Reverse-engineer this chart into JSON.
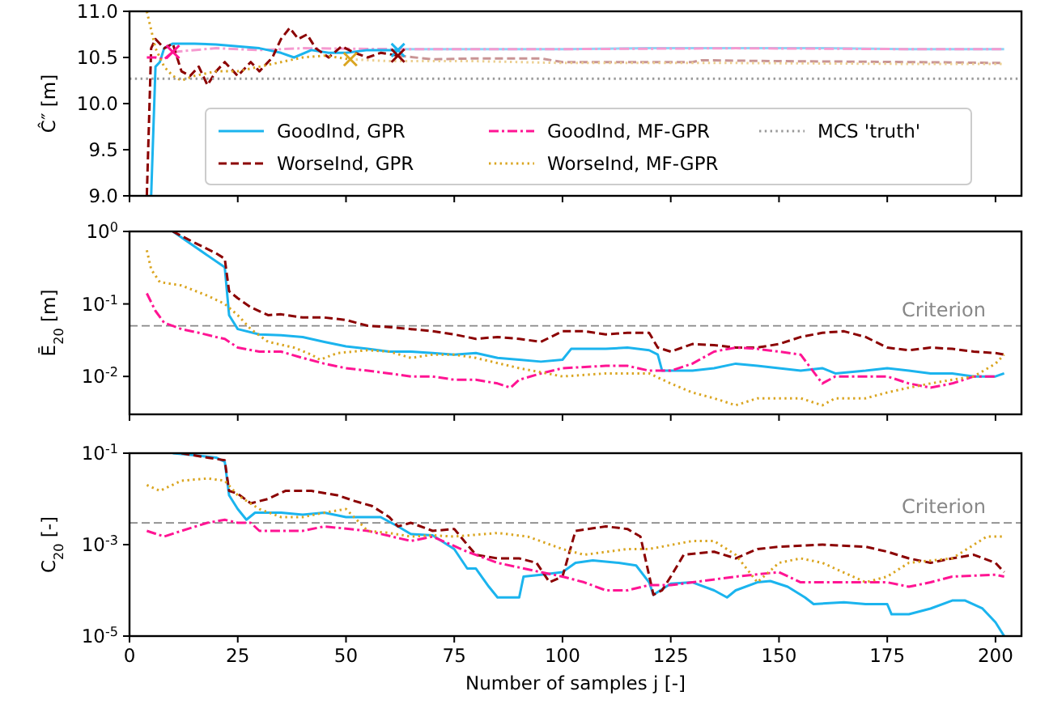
{
  "chart_data": [
    {
      "type": "line",
      "ylabel": "Ĉ″ [m]",
      "xlim": [
        0,
        206
      ],
      "xticks": [
        0,
        25,
        50,
        75,
        100,
        125,
        150,
        175,
        200
      ],
      "ylim": [
        9,
        11
      ],
      "yticks": [
        {
          "value": 9,
          "label": "9.0"
        },
        {
          "value": 9.5,
          "label": "9.5"
        },
        {
          "value": 10,
          "label": "10.0"
        },
        {
          "value": 10.5,
          "label": "10.5"
        },
        {
          "value": 11,
          "label": "11.0"
        }
      ],
      "tick_labels": "y",
      "legend": "bottom",
      "grid": false,
      "series": [
        {
          "type": "line",
          "color": "#8fd5f5",
          "line_style": "solid",
          "x": [
            62,
            80,
            100,
            120,
            140,
            160,
            180,
            202
          ],
          "values": [
            10.59,
            10.59,
            10.59,
            10.6,
            10.6,
            10.6,
            10.59,
            10.59
          ]
        },
        {
          "type": "line",
          "color": "#f59ad0",
          "line_style": "dashdot",
          "x": [
            10,
            20,
            30,
            40,
            62,
            80,
            100,
            140,
            180,
            202
          ],
          "values": [
            10.56,
            10.6,
            10.58,
            10.6,
            10.59,
            10.59,
            10.59,
            10.6,
            10.59,
            10.59
          ]
        },
        {
          "type": "line",
          "color": "#c99595",
          "line_style": "dashed",
          "x": [
            62,
            70,
            80,
            95,
            100,
            130,
            132,
            150,
            180,
            202
          ],
          "values": [
            10.52,
            10.48,
            10.49,
            10.49,
            10.45,
            10.45,
            10.47,
            10.46,
            10.45,
            10.44
          ]
        },
        {
          "type": "line",
          "color": "#eccf90",
          "line_style": "dotted",
          "x": [
            51,
            60,
            80,
            100,
            140,
            180,
            202
          ],
          "values": [
            10.48,
            10.46,
            10.46,
            10.44,
            10.44,
            10.43,
            10.43
          ]
        },
        {
          "type": "line",
          "name": "GoodInd, GPR",
          "color": "#1bb4ee",
          "line_style": "solid",
          "x": [
            5,
            6,
            7,
            8,
            10,
            15,
            20,
            25,
            30,
            35,
            38,
            42,
            46,
            50,
            55,
            60,
            62
          ],
          "values": [
            9.0,
            10.4,
            10.45,
            10.6,
            10.65,
            10.65,
            10.64,
            10.62,
            10.6,
            10.55,
            10.5,
            10.58,
            10.55,
            10.55,
            10.58,
            10.58,
            10.58
          ]
        },
        {
          "type": "line",
          "name": "WorseInd, GPR",
          "color": "#8b0000",
          "line_style": "dashed",
          "x": [
            4,
            5,
            6,
            8,
            10,
            12,
            14,
            16,
            18,
            20,
            22,
            25,
            28,
            30,
            33,
            35,
            37,
            39,
            41,
            43,
            46,
            49,
            52,
            55,
            58,
            62
          ],
          "values": [
            9.0,
            10.6,
            10.7,
            10.6,
            10.65,
            10.35,
            10.3,
            10.4,
            10.2,
            10.35,
            10.45,
            10.3,
            10.45,
            10.35,
            10.5,
            10.7,
            10.82,
            10.7,
            10.75,
            10.6,
            10.5,
            10.62,
            10.55,
            10.5,
            10.55,
            10.52
          ]
        },
        {
          "type": "line",
          "name": "GoodInd, MF-GPR",
          "color": "#ff1493",
          "line_style": "dashdot",
          "x": [
            4,
            6,
            8,
            10
          ],
          "values": [
            10.5,
            10.5,
            10.48,
            10.56
          ]
        },
        {
          "type": "line",
          "name": "WorseInd, MF-GPR",
          "color": "#daa520",
          "line_style": "dotted",
          "x": [
            4,
            5,
            6,
            8,
            10,
            12,
            15,
            20,
            25,
            30,
            35,
            40,
            45,
            51
          ],
          "values": [
            11.0,
            10.8,
            10.6,
            10.4,
            10.3,
            10.25,
            10.3,
            10.35,
            10.35,
            10.4,
            10.45,
            10.5,
            10.52,
            10.48
          ]
        },
        {
          "type": "line",
          "name": "MCS 'truth'",
          "color": "#999999",
          "line_style": "dotted",
          "x": [
            0,
            206
          ],
          "values": [
            10.27,
            10.27
          ]
        },
        {
          "type": "scatter",
          "marker": "cross",
          "color": "#1bb4ee",
          "x": [
            62
          ],
          "values": [
            10.58
          ]
        },
        {
          "type": "scatter",
          "marker": "cross",
          "color": "#8b0000",
          "x": [
            62
          ],
          "values": [
            10.52
          ]
        },
        {
          "type": "scatter",
          "marker": "cross",
          "color": "#ff1493",
          "x": [
            10
          ],
          "values": [
            10.56
          ]
        },
        {
          "type": "scatter",
          "marker": "cross",
          "color": "#daa520",
          "x": [
            51
          ],
          "values": [
            10.48
          ]
        }
      ]
    },
    {
      "type": "line",
      "ylabel": "Ē$_{20}$ [m]",
      "log": "y",
      "xlim": [
        0,
        206
      ],
      "xticks": [
        0,
        25,
        50,
        75,
        100,
        125,
        150,
        175,
        200
      ],
      "ylim": [
        0.003,
        1
      ],
      "yticks": [
        {
          "value": 0.01,
          "label": "10$^{-2}$"
        },
        {
          "value": 0.1,
          "label": "10$^{-1}$"
        },
        {
          "value": 1,
          "label": "10$^{0}$"
        }
      ],
      "tick_labels": "y",
      "grid": false,
      "ref_lines": [
        {
          "axis": "y",
          "value": 0.05,
          "label": "Criterion",
          "color": "#888888",
          "line_style": "dashed"
        }
      ],
      "series": [
        {
          "type": "line",
          "color": "#1bb4ee",
          "line_style": "solid",
          "x": [
            10,
            22,
            23,
            25,
            30,
            35,
            40,
            45,
            50,
            55,
            60,
            65,
            70,
            75,
            80,
            85,
            90,
            95,
            100,
            102,
            110,
            115,
            120,
            122,
            123,
            130,
            135,
            140,
            145,
            150,
            155,
            160,
            163,
            170,
            175,
            180,
            185,
            190,
            195,
            200,
            202
          ],
          "values": [
            1,
            0.32,
            0.07,
            0.045,
            0.038,
            0.037,
            0.035,
            0.03,
            0.026,
            0.024,
            0.022,
            0.022,
            0.021,
            0.02,
            0.021,
            0.018,
            0.017,
            0.016,
            0.017,
            0.024,
            0.024,
            0.025,
            0.023,
            0.02,
            0.012,
            0.012,
            0.013,
            0.015,
            0.014,
            0.013,
            0.012,
            0.013,
            0.011,
            0.012,
            0.013,
            0.012,
            0.011,
            0.011,
            0.01,
            0.01,
            0.011
          ]
        },
        {
          "type": "line",
          "color": "#8b0000",
          "line_style": "dashed",
          "x": [
            10,
            15,
            20,
            22,
            23,
            25,
            28,
            32,
            35,
            40,
            45,
            50,
            55,
            60,
            65,
            70,
            75,
            80,
            85,
            90,
            95,
            100,
            105,
            110,
            115,
            120,
            122,
            125,
            130,
            135,
            140,
            145,
            150,
            155,
            160,
            165,
            170,
            175,
            180,
            185,
            190,
            195,
            200,
            202
          ],
          "values": [
            1,
            0.7,
            0.5,
            0.42,
            0.15,
            0.12,
            0.09,
            0.07,
            0.072,
            0.065,
            0.065,
            0.06,
            0.05,
            0.048,
            0.045,
            0.042,
            0.038,
            0.033,
            0.035,
            0.033,
            0.03,
            0.042,
            0.042,
            0.038,
            0.04,
            0.04,
            0.025,
            0.022,
            0.028,
            0.027,
            0.025,
            0.025,
            0.028,
            0.035,
            0.04,
            0.042,
            0.035,
            0.025,
            0.023,
            0.025,
            0.024,
            0.022,
            0.021,
            0.02
          ]
        },
        {
          "type": "line",
          "color": "#ff1493",
          "line_style": "dashdot",
          "x": [
            4,
            6,
            8,
            12,
            16,
            20,
            22,
            25,
            30,
            35,
            40,
            45,
            50,
            55,
            60,
            65,
            70,
            75,
            80,
            85,
            88,
            90,
            95,
            100,
            110,
            115,
            120,
            125,
            130,
            135,
            140,
            145,
            150,
            155,
            160,
            163,
            170,
            175,
            180,
            185,
            190,
            195,
            200
          ],
          "values": [
            0.14,
            0.08,
            0.055,
            0.045,
            0.04,
            0.035,
            0.033,
            0.025,
            0.022,
            0.022,
            0.018,
            0.015,
            0.013,
            0.012,
            0.011,
            0.01,
            0.01,
            0.009,
            0.009,
            0.008,
            0.007,
            0.009,
            0.011,
            0.013,
            0.014,
            0.014,
            0.012,
            0.012,
            0.015,
            0.022,
            0.025,
            0.024,
            0.022,
            0.02,
            0.008,
            0.01,
            0.01,
            0.01,
            0.008,
            0.007,
            0.008,
            0.01,
            0.01
          ]
        },
        {
          "type": "line",
          "color": "#daa520",
          "line_style": "dotted",
          "x": [
            4,
            5,
            7,
            12,
            18,
            22,
            25,
            28,
            32,
            38,
            42,
            44,
            48,
            55,
            60,
            65,
            70,
            75,
            80,
            90,
            100,
            110,
            120,
            125,
            130,
            135,
            140,
            145,
            150,
            155,
            160,
            163,
            170,
            175,
            180,
            185,
            190,
            195,
            200,
            202
          ],
          "values": [
            0.55,
            0.3,
            0.2,
            0.18,
            0.13,
            0.1,
            0.07,
            0.045,
            0.03,
            0.025,
            0.02,
            0.017,
            0.021,
            0.023,
            0.022,
            0.018,
            0.02,
            0.02,
            0.018,
            0.013,
            0.01,
            0.011,
            0.011,
            0.008,
            0.006,
            0.005,
            0.004,
            0.005,
            0.005,
            0.005,
            0.004,
            0.005,
            0.005,
            0.006,
            0.007,
            0.008,
            0.009,
            0.01,
            0.015,
            0.02
          ]
        }
      ]
    },
    {
      "type": "line",
      "ylabel": "C$_{20}$ [-]",
      "xlabel": "Number of samples j [-]",
      "log": "y",
      "xlim": [
        0,
        206
      ],
      "xticks": [
        0,
        25,
        50,
        75,
        100,
        125,
        150,
        175,
        200
      ],
      "ylim": [
        1e-05,
        0.1
      ],
      "yticks": [
        {
          "value": 1e-05,
          "label": "10$^{-5}$"
        },
        {
          "value": 0.001,
          "label": "10$^{-3}$"
        },
        {
          "value": 0.1,
          "label": "10$^{-1}$"
        }
      ],
      "grid": false,
      "ref_lines": [
        {
          "axis": "y",
          "value": 0.003,
          "label": "Criterion",
          "color": "#888888",
          "line_style": "dashed"
        }
      ],
      "series": [
        {
          "type": "line",
          "color": "#1bb4ee",
          "line_style": "solid",
          "x": [
            10,
            15,
            20,
            22,
            23,
            25,
            27,
            29,
            35,
            40,
            45,
            50,
            55,
            58,
            62,
            65,
            70,
            75,
            78,
            80,
            83,
            85,
            90,
            91,
            95,
            100,
            103,
            107,
            113,
            117,
            120,
            121,
            125,
            130,
            135,
            138,
            140,
            145,
            148,
            152,
            156,
            158,
            165,
            170,
            175,
            176,
            180,
            185,
            190,
            193,
            197,
            200,
            202
          ],
          "values": [
            0.1,
            0.09,
            0.08,
            0.065,
            0.012,
            0.006,
            0.0035,
            0.005,
            0.005,
            0.0045,
            0.005,
            0.004,
            0.004,
            0.004,
            0.0025,
            0.0017,
            0.0016,
            0.0008,
            0.0003,
            0.0003,
            0.00012,
            7e-05,
            7e-05,
            0.0002,
            0.00022,
            0.00025,
            0.0004,
            0.00045,
            0.0004,
            0.00035,
            0.00015,
            8e-05,
            0.00014,
            0.00015,
            0.0001,
            7e-05,
            0.0001,
            0.00015,
            0.00016,
            0.00012,
            7e-05,
            5e-05,
            5.5e-05,
            5e-05,
            5e-05,
            3e-05,
            3e-05,
            4e-05,
            6e-05,
            6e-05,
            4e-05,
            2e-05,
            1e-05
          ]
        },
        {
          "type": "line",
          "color": "#8b0000",
          "line_style": "dashed",
          "x": [
            12,
            18,
            22,
            23,
            25,
            28,
            32,
            36,
            42,
            48,
            52,
            56,
            60,
            62,
            65,
            70,
            75,
            78,
            80,
            85,
            90,
            94,
            97,
            100,
            103,
            110,
            115,
            118,
            121,
            123,
            125,
            128,
            135,
            140,
            145,
            150,
            160,
            170,
            175,
            180,
            185,
            190,
            195,
            200,
            202
          ],
          "values": [
            0.1,
            0.08,
            0.07,
            0.015,
            0.013,
            0.008,
            0.01,
            0.015,
            0.015,
            0.012,
            0.009,
            0.007,
            0.004,
            0.0025,
            0.003,
            0.002,
            0.0022,
            0.001,
            0.0006,
            0.0005,
            0.0005,
            0.0004,
            0.00015,
            0.0002,
            0.002,
            0.0025,
            0.0022,
            0.0015,
            8e-05,
            0.0001,
            0.0002,
            0.0006,
            0.0007,
            0.0005,
            0.0008,
            0.0009,
            0.001,
            0.0009,
            0.0007,
            0.0005,
            0.0004,
            0.0005,
            0.0006,
            0.0004,
            0.00025
          ]
        },
        {
          "type": "line",
          "color": "#ff1493",
          "line_style": "dashdot",
          "x": [
            4,
            8,
            12,
            18,
            22,
            25,
            28,
            30,
            40,
            45,
            55,
            65,
            70,
            78,
            85,
            95,
            100,
            105,
            110,
            115,
            120,
            125,
            130,
            140,
            150,
            155,
            165,
            175,
            180,
            185,
            190,
            200,
            202
          ],
          "values": [
            0.002,
            0.0015,
            0.002,
            0.003,
            0.0035,
            0.003,
            0.003,
            0.002,
            0.002,
            0.0025,
            0.002,
            0.0012,
            0.0015,
            0.0007,
            0.0004,
            0.00025,
            0.0002,
            0.00015,
            0.0001,
            0.0001,
            0.00013,
            0.00013,
            0.00015,
            0.0002,
            0.00025,
            0.00015,
            0.00015,
            0.00015,
            0.00012,
            0.00015,
            0.0002,
            0.00022,
            0.0002
          ]
        },
        {
          "type": "line",
          "color": "#daa520",
          "line_style": "dotted",
          "x": [
            4,
            7,
            12,
            18,
            22,
            25,
            30,
            35,
            40,
            45,
            50,
            55,
            60,
            65,
            70,
            75,
            85,
            92,
            100,
            105,
            115,
            120,
            130,
            135,
            140,
            145,
            150,
            155,
            160,
            170,
            175,
            180,
            190,
            198,
            202
          ],
          "values": [
            0.02,
            0.015,
            0.025,
            0.028,
            0.025,
            0.012,
            0.006,
            0.004,
            0.004,
            0.005,
            0.006,
            0.002,
            0.0018,
            0.0015,
            0.0016,
            0.0015,
            0.0018,
            0.0015,
            0.0008,
            0.0006,
            0.0008,
            0.0008,
            0.0012,
            0.0012,
            0.0006,
            0.00015,
            0.0004,
            0.0005,
            0.0004,
            0.00015,
            0.0002,
            0.0004,
            0.0005,
            0.0015,
            0.0015
          ]
        }
      ]
    }
  ]
}
